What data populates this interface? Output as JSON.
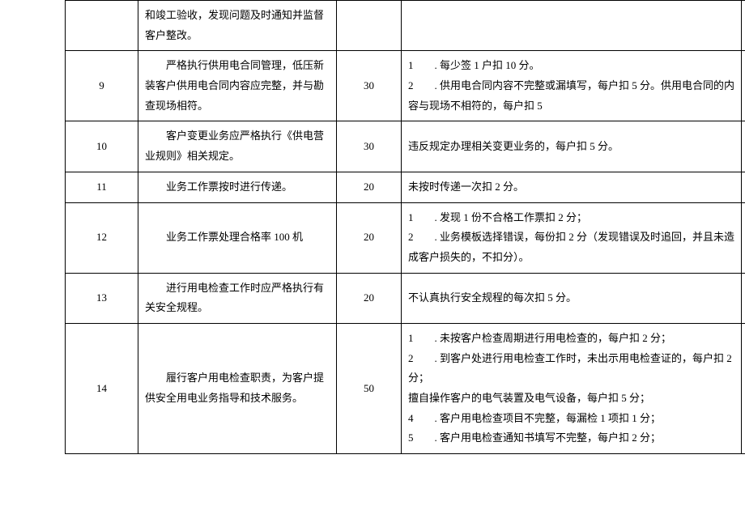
{
  "table": {
    "rows": [
      {
        "seq": "",
        "desc": "和竣工验收，发现问题及时通知并监督客户整改。",
        "score": "",
        "rule": "",
        "extra": ""
      },
      {
        "seq": "9",
        "desc": "　　严格执行供用电合同管理，低压新装客户供用电合同内容应完整，并与勘查现场相符。",
        "score": "30",
        "rule": "1　　. 每少签 1 户扣 10 分。\n2　　. 供用电合同内容不完整或漏填写，每户扣 5 分。供用电合同的内容与现场不相符的，每户扣 5",
        "extra": ""
      },
      {
        "seq": "10",
        "desc": "　　客户变更业务应严格执行《供电营业规则》相关规定。",
        "score": "30",
        "rule": "违反规定办理相关变更业务的，每户扣 5 分。",
        "extra": ""
      },
      {
        "seq": "11",
        "desc": "　　业务工作票按时进行传递。",
        "score": "20",
        "rule": "未按时传递一次扣 2 分。",
        "extra": ""
      },
      {
        "seq": "12",
        "desc": "　　业务工作票处理合格率 100 机",
        "score": "20",
        "rule": "1　　. 发现 1 份不合格工作票扣 2 分；\n2　　. 业务模板选择错误，每份扣 2 分（发现错误及时追回，并且未造成客户损失的，不扣分）。",
        "extra": ""
      },
      {
        "seq": "13",
        "desc": "　　进行用电检查工作时应严格执行有关安全规程。",
        "score": "20",
        "rule": "不认真执行安全规程的每次扣 5 分。",
        "extra": ""
      },
      {
        "seq": "14",
        "desc": "　　履行客户用电检查职责，为客户提供安全用电业务指导和技术服务。",
        "score": "50",
        "rule": "1　　. 未按客户检查周期进行用电检查的，每户扣 2 分；\n2　　. 到客户处进行用电检查工作时，未出示用电检查证的，每户扣 2 分；\n擅自操作客户的电气装置及电气设备，每户扣 5 分；\n4　　. 客户用电检查项目不完整，每漏检 1 项扣 1 分；\n5　　. 客户用电检查通知书填写不完整，每户扣 2 分；",
        "extra": ""
      }
    ]
  }
}
